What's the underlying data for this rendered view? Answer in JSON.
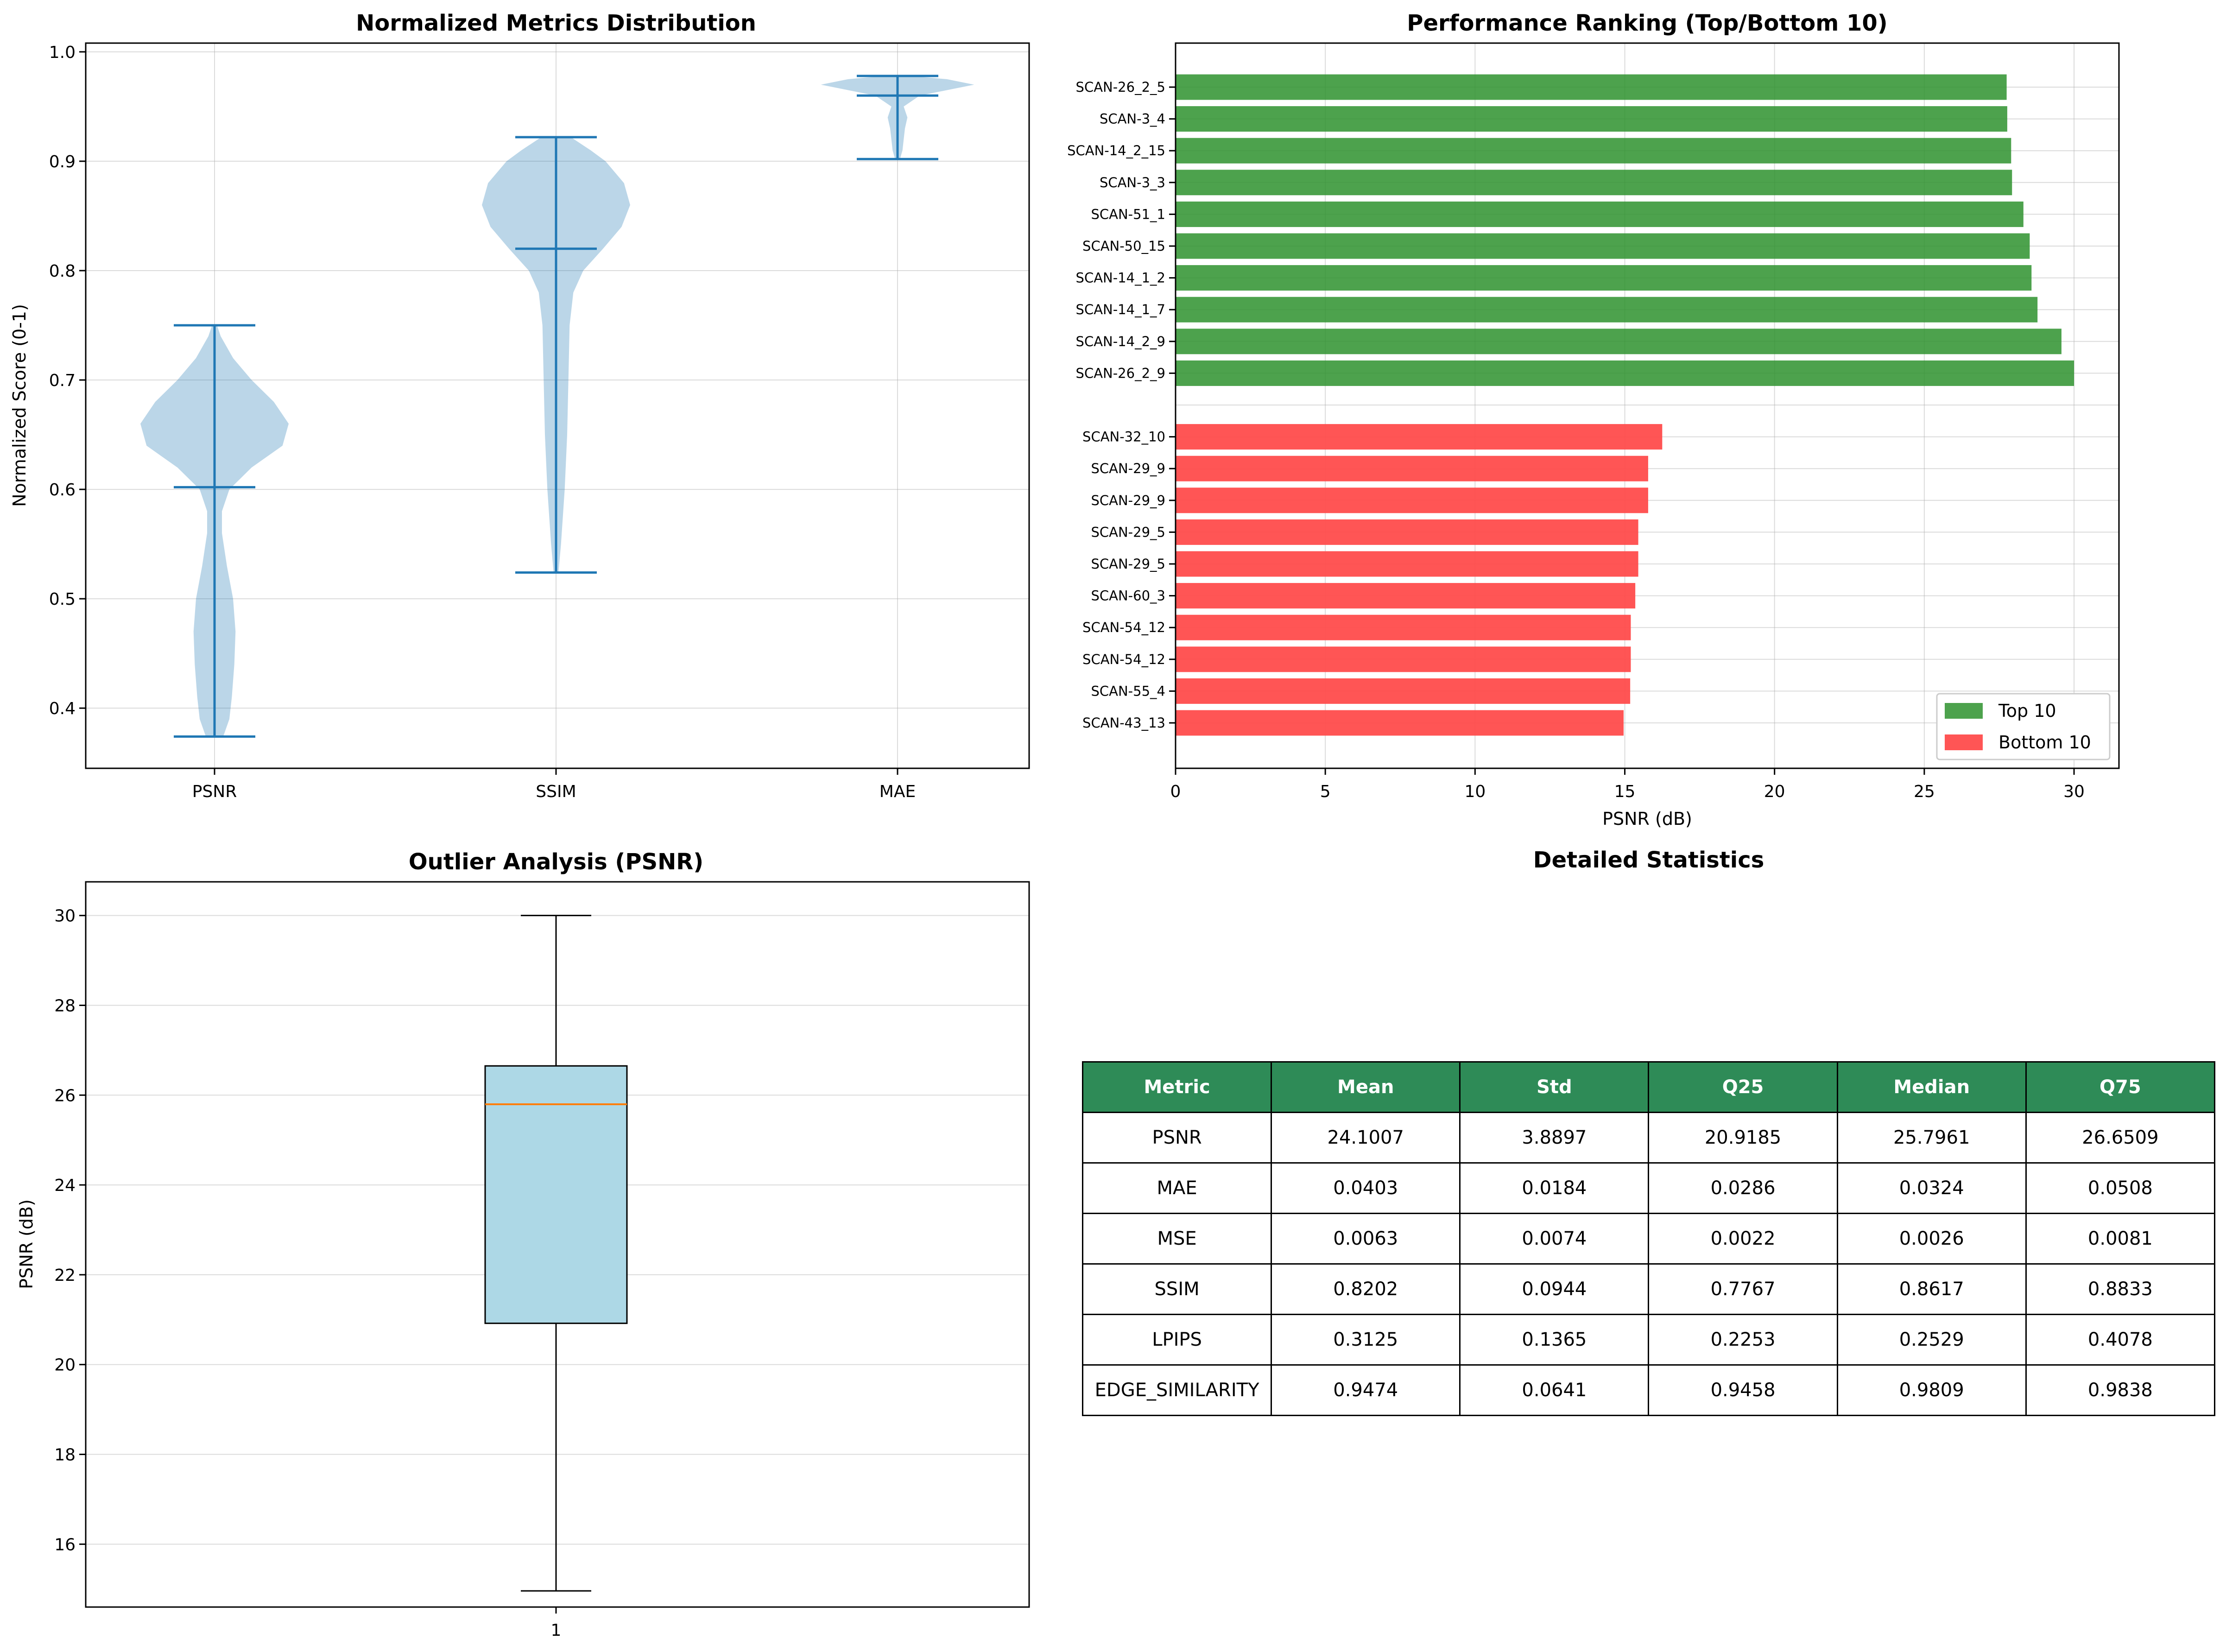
{
  "chart_data": [
    {
      "type": "violin",
      "title": "Normalized Metrics Distribution",
      "xlabel": "",
      "ylabel": "Normalized Score (0-1)",
      "categories": [
        "PSNR",
        "SSIM",
        "MAE"
      ],
      "ylim": [
        0.345,
        1.008
      ],
      "yticks": [
        0.4,
        0.5,
        0.6,
        0.7,
        0.8,
        0.9,
        1.0
      ],
      "ytick_labels": [
        "0.4",
        "0.5",
        "0.6",
        "0.7",
        "0.8",
        "0.9",
        "1.0"
      ],
      "violins": [
        {
          "name": "PSNR",
          "min": 0.374,
          "mean": 0.602,
          "max": 0.75,
          "profile": [
            [
              0.374,
              0.07
            ],
            [
              0.39,
              0.12
            ],
            [
              0.41,
              0.14
            ],
            [
              0.44,
              0.16
            ],
            [
              0.47,
              0.17
            ],
            [
              0.5,
              0.15
            ],
            [
              0.53,
              0.1
            ],
            [
              0.56,
              0.06
            ],
            [
              0.58,
              0.06
            ],
            [
              0.6,
              0.12
            ],
            [
              0.62,
              0.3
            ],
            [
              0.64,
              0.55
            ],
            [
              0.66,
              0.6
            ],
            [
              0.68,
              0.48
            ],
            [
              0.7,
              0.3
            ],
            [
              0.72,
              0.15
            ],
            [
              0.74,
              0.05
            ],
            [
              0.75,
              0.02
            ]
          ]
        },
        {
          "name": "SSIM",
          "min": 0.524,
          "mean": 0.82,
          "max": 0.922,
          "profile": [
            [
              0.524,
              0.02
            ],
            [
              0.55,
              0.04
            ],
            [
              0.6,
              0.07
            ],
            [
              0.65,
              0.09
            ],
            [
              0.7,
              0.1
            ],
            [
              0.75,
              0.11
            ],
            [
              0.78,
              0.14
            ],
            [
              0.8,
              0.22
            ],
            [
              0.82,
              0.38
            ],
            [
              0.84,
              0.53
            ],
            [
              0.86,
              0.6
            ],
            [
              0.88,
              0.55
            ],
            [
              0.9,
              0.4
            ],
            [
              0.91,
              0.28
            ],
            [
              0.922,
              0.12
            ]
          ]
        },
        {
          "name": "MAE",
          "min": 0.902,
          "mean": 0.96,
          "max": 0.978,
          "profile": [
            [
              0.902,
              0.02
            ],
            [
              0.91,
              0.04
            ],
            [
              0.92,
              0.05
            ],
            [
              0.93,
              0.06
            ],
            [
              0.94,
              0.08
            ],
            [
              0.95,
              0.05
            ],
            [
              0.96,
              0.18
            ],
            [
              0.965,
              0.4
            ],
            [
              0.97,
              0.62
            ],
            [
              0.975,
              0.4
            ],
            [
              0.978,
              0.1
            ]
          ]
        }
      ],
      "color": "#1f77b4"
    },
    {
      "type": "bar",
      "orientation": "horizontal",
      "title": "Performance Ranking (Top/Bottom 10)",
      "xlabel": "PSNR (dB)",
      "ylabel": "",
      "xlim": [
        0,
        31.5
      ],
      "xticks": [
        0,
        5,
        10,
        15,
        20,
        25,
        30
      ],
      "grid": true,
      "legend_position": "bottom-right",
      "series": [
        {
          "name": "Top 10",
          "color": "#2e922e",
          "categories": [
            "SCAN-26_2_5",
            "SCAN-3_4",
            "SCAN-14_2_15",
            "SCAN-3_3",
            "SCAN-51_1",
            "SCAN-50_15",
            "SCAN-14_1_2",
            "SCAN-14_1_7",
            "SCAN-14_2_9",
            "SCAN-26_2_9"
          ],
          "values": [
            27.75,
            27.77,
            27.9,
            27.93,
            28.31,
            28.52,
            28.58,
            28.78,
            29.58,
            30.0
          ]
        },
        {
          "name": "Bottom 10",
          "color": "#ff4c4c",
          "categories": [
            "SCAN-32_10",
            "SCAN-29_9",
            "SCAN-29_9",
            "SCAN-29_5",
            "SCAN-29_5",
            "SCAN-60_3",
            "SCAN-54_12",
            "SCAN-54_12",
            "SCAN-55_4",
            "SCAN-43_13"
          ],
          "values": [
            16.25,
            15.78,
            15.78,
            15.45,
            15.45,
            15.35,
            15.2,
            15.2,
            15.18,
            14.96
          ]
        }
      ]
    },
    {
      "type": "box",
      "title": "Outlier Analysis (PSNR)",
      "xlabel": "",
      "ylabel": "PSNR (dB)",
      "categories": [
        "1"
      ],
      "ylim": [
        14.6,
        30.75
      ],
      "yticks": [
        16,
        18,
        20,
        22,
        24,
        26,
        28,
        30
      ],
      "box": {
        "whisker_low": 14.96,
        "q1": 20.9185,
        "median": 25.7961,
        "q3": 26.6509,
        "whisker_high": 30.0
      },
      "box_color": "#add8e6",
      "median_color": "#ff7f0e"
    },
    {
      "type": "table",
      "title": "Detailed Statistics",
      "columns": [
        "Metric",
        "Mean",
        "Std",
        "Q25",
        "Median",
        "Q75"
      ],
      "rows": [
        [
          "PSNR",
          "24.1007",
          "3.8897",
          "20.9185",
          "25.7961",
          "26.6509"
        ],
        [
          "MAE",
          "0.0403",
          "0.0184",
          "0.0286",
          "0.0324",
          "0.0508"
        ],
        [
          "MSE",
          "0.0063",
          "0.0074",
          "0.0022",
          "0.0026",
          "0.0081"
        ],
        [
          "SSIM",
          "0.8202",
          "0.0944",
          "0.7767",
          "0.8617",
          "0.8833"
        ],
        [
          "LPIPS",
          "0.3125",
          "0.1365",
          "0.2253",
          "0.2529",
          "0.4078"
        ],
        [
          "EDGE_SIMILARITY",
          "0.9474",
          "0.0641",
          "0.9458",
          "0.9809",
          "0.9838"
        ]
      ],
      "header_color": "#2e8b57"
    }
  ]
}
